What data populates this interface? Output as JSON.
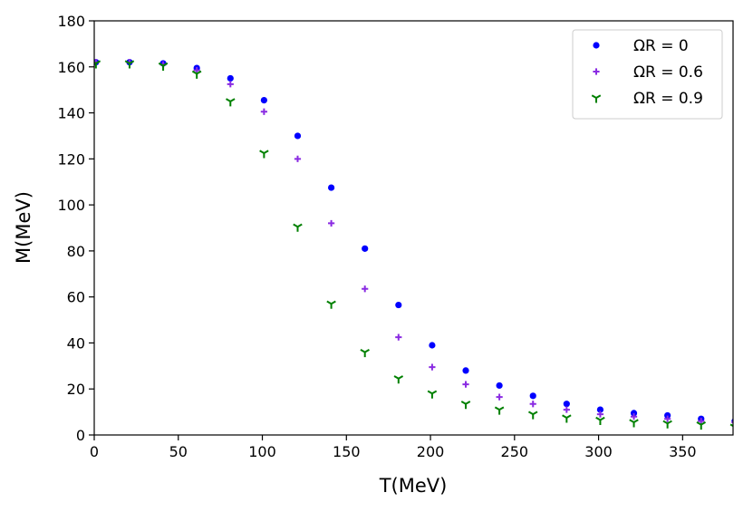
{
  "chart_data": {
    "type": "scatter",
    "title": "",
    "xlabel": "T(MeV)",
    "ylabel": "M(MeV)",
    "xlim": [
      0,
      380
    ],
    "ylim": [
      0,
      180
    ],
    "xticks": [
      0,
      50,
      100,
      150,
      200,
      250,
      300,
      350
    ],
    "yticks": [
      0,
      20,
      40,
      60,
      80,
      100,
      120,
      140,
      160,
      180
    ],
    "grid": false,
    "legend_position": "top-right",
    "x": [
      1,
      21,
      41,
      61,
      81,
      101,
      121,
      141,
      161,
      181,
      201,
      221,
      241,
      261,
      281,
      301,
      321,
      341,
      361,
      381
    ],
    "series": [
      {
        "name": "ΩR = 0",
        "marker": "circle",
        "color": "#0000ff",
        "values": [
          162,
          162,
          161.5,
          159.5,
          155,
          145.5,
          130,
          107.5,
          81,
          56.5,
          39,
          28,
          21.5,
          17,
          13.5,
          11,
          9.5,
          8.5,
          7,
          6
        ]
      },
      {
        "name": "ΩR = 0.6",
        "marker": "plus",
        "color": "#8a2be2",
        "values": [
          162,
          162,
          161,
          158.5,
          152.5,
          140.5,
          120,
          92,
          63.5,
          42.5,
          29.5,
          22,
          16.5,
          13.5,
          11,
          9,
          8,
          7,
          6,
          5.5
        ]
      },
      {
        "name": "ΩR = 0.9",
        "marker": "tri_down",
        "color": "#008000",
        "values": [
          161.5,
          161.5,
          160.5,
          157,
          145,
          122.5,
          90.5,
          57,
          36,
          24.5,
          18,
          13.5,
          11,
          9,
          7.5,
          6.5,
          5.5,
          5,
          4.5,
          3.5
        ]
      }
    ]
  }
}
